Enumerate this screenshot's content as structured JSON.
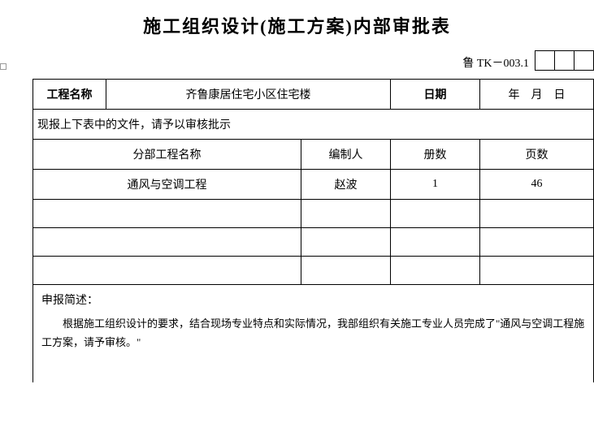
{
  "title": "施工组织设计(施工方案)内部审批表",
  "doc_code": "鲁 TK－003.1",
  "header": {
    "project_label": "工程名称",
    "project_name": "齐鲁康居住宅小区住宅楼",
    "date_label": "日期",
    "date_value": "年　月　日"
  },
  "instruction": "现报上下表中的文件，请予以审核批示",
  "sub_headers": {
    "name": "分部工程名称",
    "author": "编制人",
    "volumes": "册数",
    "pages": "页数"
  },
  "rows": [
    {
      "name": "通风与空调工程",
      "author": "赵波",
      "volumes": "1",
      "pages": "46"
    }
  ],
  "description": {
    "label": "申报简述：",
    "content": "根据施工组织设计的要求，结合现场专业特点和实际情况，我部组织有关施工专业人员完成了\"通风与空调工程施工方案，请予审核。\""
  }
}
